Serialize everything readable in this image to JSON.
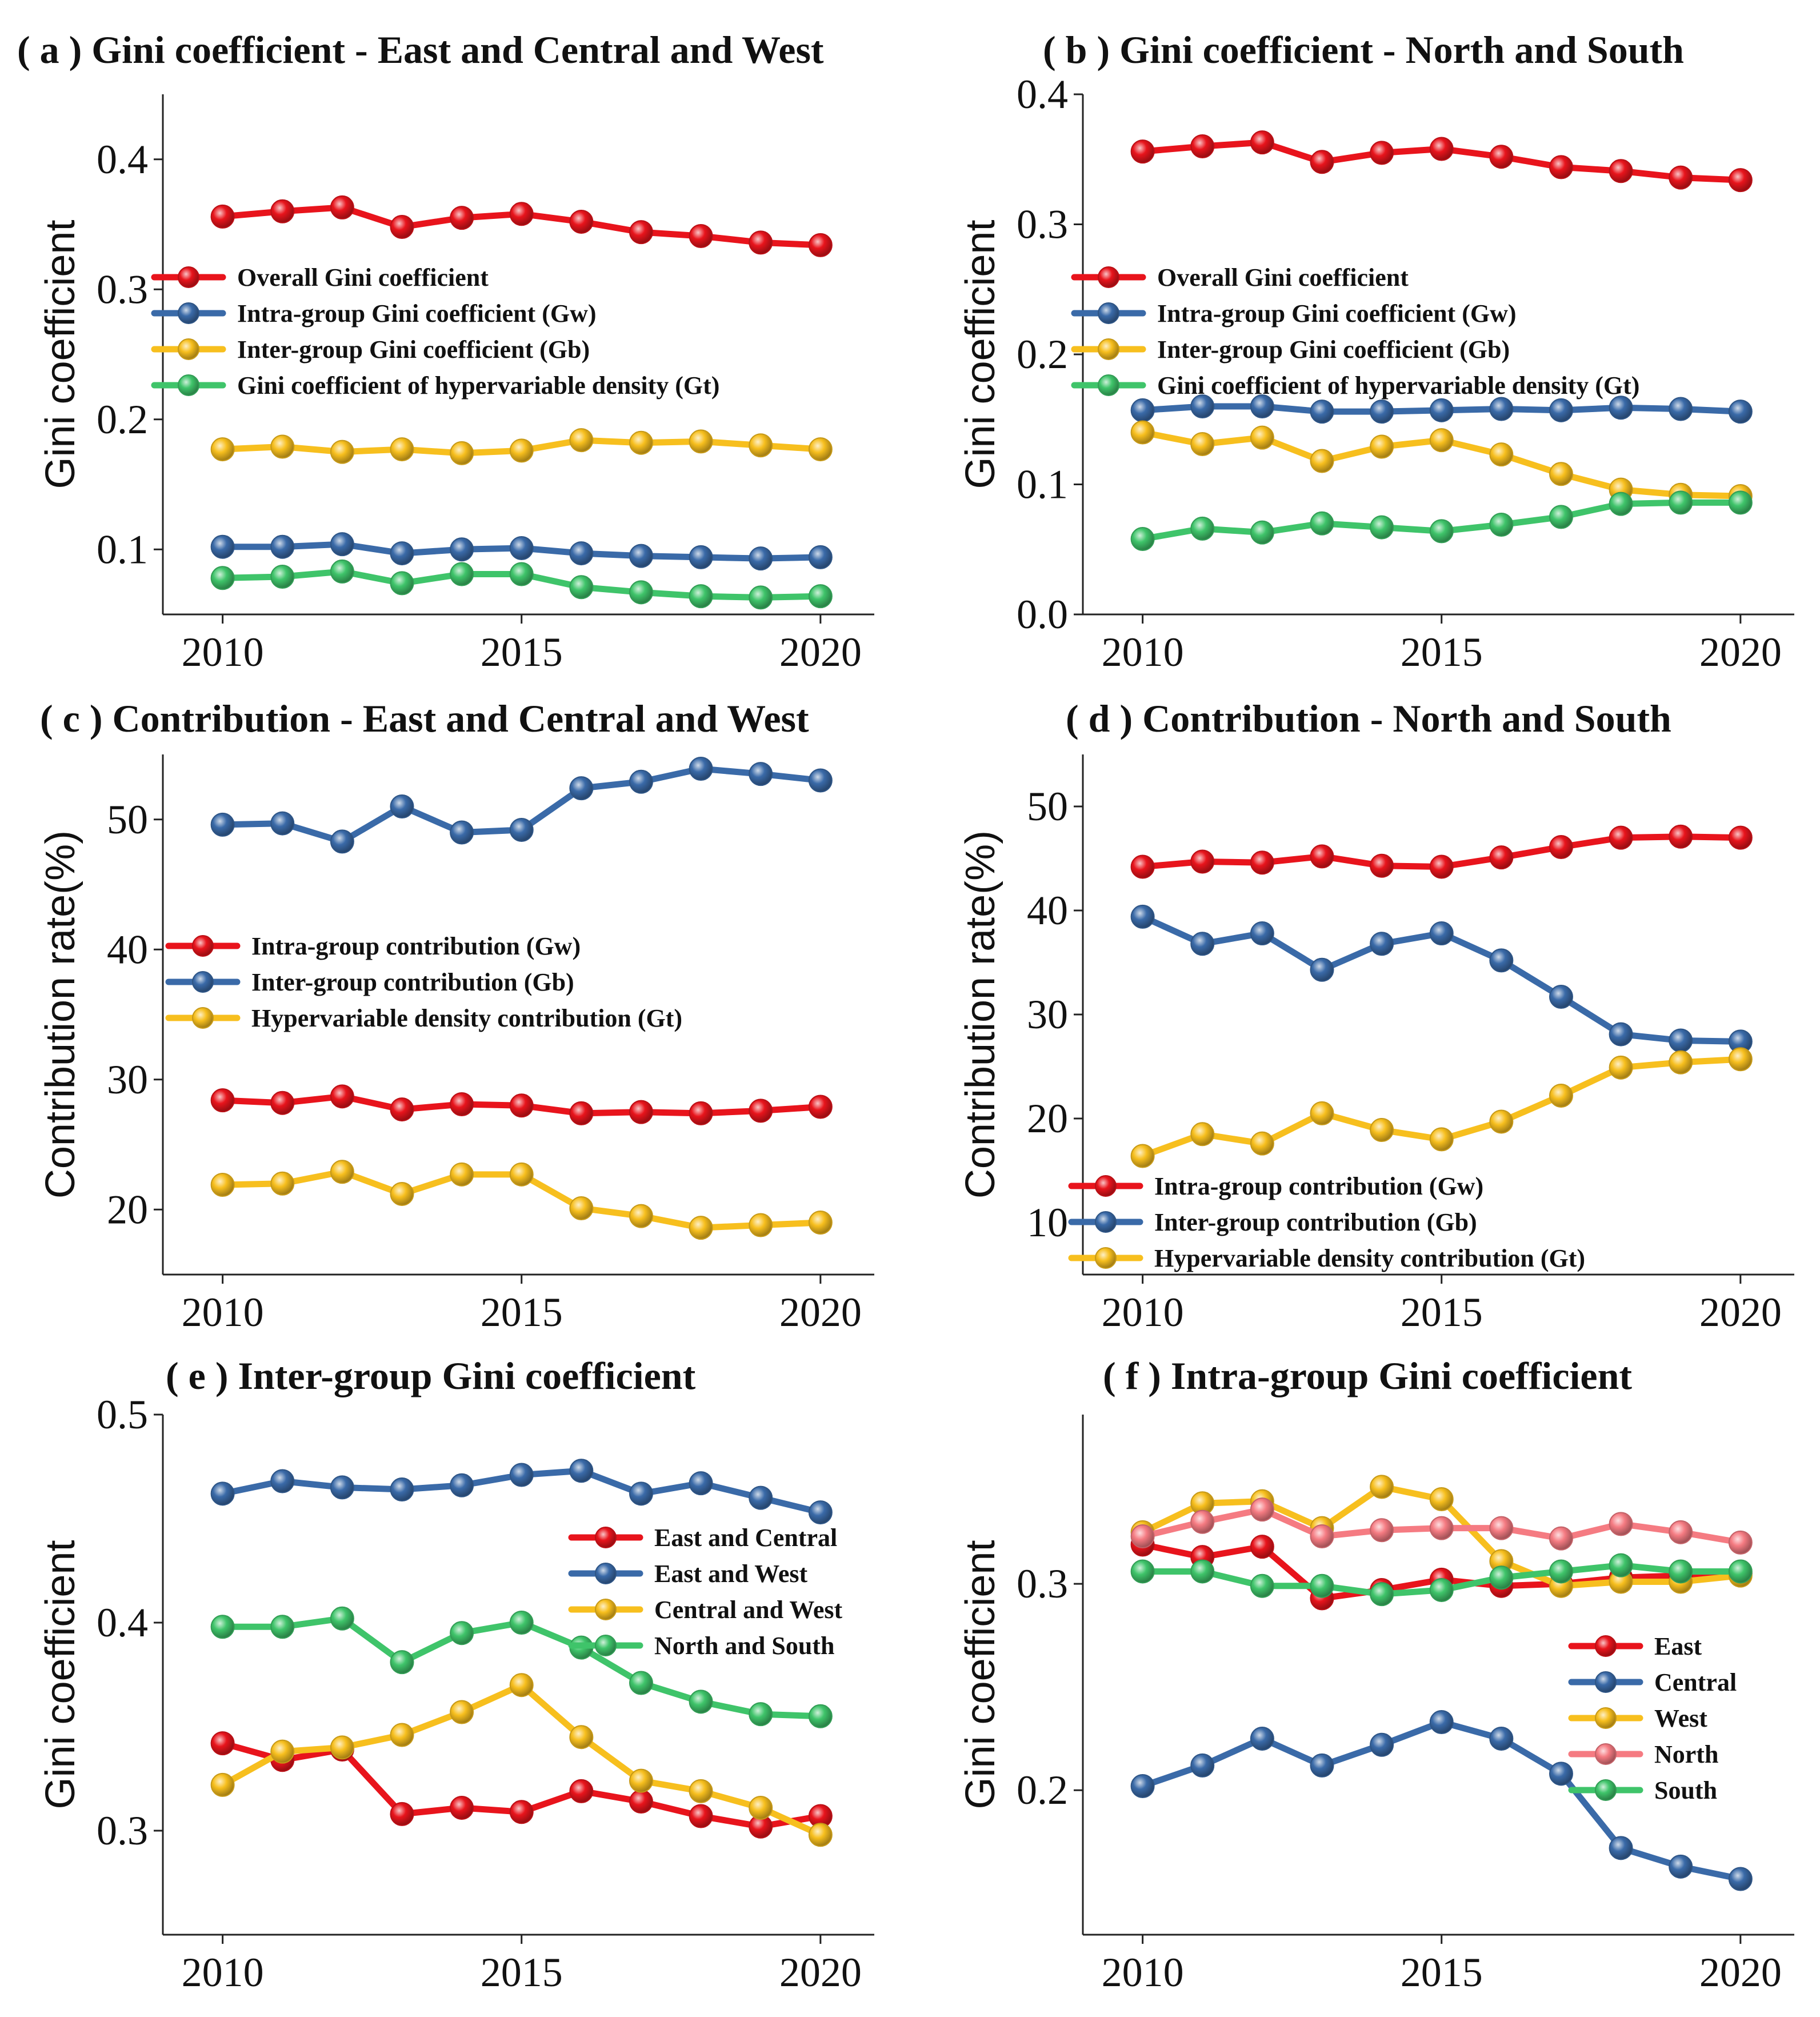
{
  "chart_data": [
    {
      "id": "a",
      "type": "line",
      "title": "( a ) Gini coefficient - East and Central and West",
      "xlabel": "",
      "ylabel": "Gini coefficient",
      "x": [
        2010,
        2011,
        2012,
        2013,
        2014,
        2015,
        2016,
        2017,
        2018,
        2019,
        2020
      ],
      "xticks": [
        2010,
        2015,
        2020
      ],
      "xlim": [
        2009,
        2020.9
      ],
      "ylim": [
        0.05,
        0.45
      ],
      "yticks": [
        0.1,
        0.2,
        0.3,
        0.4
      ],
      "ytick_labels": [
        "0.1",
        "0.2",
        "0.3",
        "0.4"
      ],
      "legend_position": "upper-left",
      "series": [
        {
          "name": "Overall Gini coefficient",
          "color": "#e8141c",
          "values": [
            0.356,
            0.36,
            0.363,
            0.348,
            0.355,
            0.358,
            0.352,
            0.344,
            0.341,
            0.336,
            0.334
          ]
        },
        {
          "name": "Intra-group Gini coefficient (Gw)",
          "color": "#3a6aa8",
          "values": [
            0.102,
            0.102,
            0.104,
            0.097,
            0.1,
            0.101,
            0.097,
            0.095,
            0.094,
            0.093,
            0.094
          ]
        },
        {
          "name": "Inter-group Gini coefficient (Gb)",
          "color": "#f7bf1e",
          "values": [
            0.177,
            0.179,
            0.175,
            0.177,
            0.174,
            0.176,
            0.184,
            0.182,
            0.183,
            0.18,
            0.177
          ]
        },
        {
          "name": "Gini coefficient of hypervariable density (Gt)",
          "color": "#3fc46a",
          "values": [
            0.078,
            0.079,
            0.083,
            0.074,
            0.081,
            0.081,
            0.071,
            0.067,
            0.064,
            0.063,
            0.064
          ]
        }
      ]
    },
    {
      "id": "b",
      "type": "line",
      "title": "( b ) Gini coefficient -  North and South",
      "xlabel": "",
      "ylabel": "Gini coefficient",
      "x": [
        2010,
        2011,
        2012,
        2013,
        2014,
        2015,
        2016,
        2017,
        2018,
        2019,
        2020
      ],
      "xticks": [
        2010,
        2015,
        2020
      ],
      "xlim": [
        2009,
        2020.9
      ],
      "ylim": [
        0.0,
        0.4
      ],
      "yticks": [
        0.0,
        0.1,
        0.2,
        0.3,
        0.4
      ],
      "ytick_labels": [
        "0.0",
        "0.1",
        "0.2",
        "0.3",
        "0.4"
      ],
      "legend_position": "upper-left",
      "series": [
        {
          "name": "Overall Gini coefficient",
          "color": "#e8141c",
          "values": [
            0.356,
            0.36,
            0.363,
            0.348,
            0.355,
            0.358,
            0.352,
            0.344,
            0.341,
            0.336,
            0.334
          ]
        },
        {
          "name": "Intra-group Gini coefficient (Gw)",
          "color": "#3a6aa8",
          "values": [
            0.157,
            0.16,
            0.16,
            0.156,
            0.156,
            0.157,
            0.158,
            0.157,
            0.159,
            0.158,
            0.156
          ]
        },
        {
          "name": "Inter-group Gini coefficient (Gb)",
          "color": "#f7bf1e",
          "values": [
            0.14,
            0.131,
            0.136,
            0.118,
            0.129,
            0.134,
            0.123,
            0.108,
            0.096,
            0.092,
            0.091
          ]
        },
        {
          "name": "Gini coefficient of hypervariable density (Gt)",
          "color": "#3fc46a",
          "values": [
            0.058,
            0.066,
            0.063,
            0.07,
            0.067,
            0.064,
            0.069,
            0.075,
            0.085,
            0.086,
            0.086
          ]
        }
      ]
    },
    {
      "id": "c",
      "type": "line",
      "title": "( c ) Contribution - East and Central and West",
      "xlabel": "",
      "ylabel": "Contribution rate(%)",
      "x": [
        2010,
        2011,
        2012,
        2013,
        2014,
        2015,
        2016,
        2017,
        2018,
        2019,
        2020
      ],
      "xticks": [
        2010,
        2015,
        2020
      ],
      "xlim": [
        2009,
        2020.9
      ],
      "ylim": [
        15,
        55
      ],
      "yticks": [
        20,
        30,
        40,
        50
      ],
      "ytick_labels": [
        "20",
        "30",
        "40",
        "50"
      ],
      "legend_position": "middle-left",
      "series": [
        {
          "name": "Intra-group contribution (Gw)",
          "color": "#e8141c",
          "values": [
            28.4,
            28.2,
            28.7,
            27.7,
            28.1,
            28.0,
            27.4,
            27.5,
            27.4,
            27.6,
            27.9
          ]
        },
        {
          "name": "Inter-group contribution (Gb)",
          "color": "#3a6aa8",
          "values": [
            49.6,
            49.7,
            48.3,
            51.0,
            49.0,
            49.2,
            52.4,
            52.9,
            53.9,
            53.5,
            53.0
          ]
        },
        {
          "name": "Hypervariable density contribution (Gt)",
          "color": "#f7bf1e",
          "values": [
            21.9,
            22.0,
            22.9,
            21.2,
            22.7,
            22.7,
            20.1,
            19.5,
            18.6,
            18.8,
            19.0
          ]
        }
      ]
    },
    {
      "id": "d",
      "type": "line",
      "title": "( d ) Contribution -  North and South",
      "xlabel": "",
      "ylabel": "Contribution rate(%)",
      "x": [
        2010,
        2011,
        2012,
        2013,
        2014,
        2015,
        2016,
        2017,
        2018,
        2019,
        2020
      ],
      "xticks": [
        2010,
        2015,
        2020
      ],
      "xlim": [
        2009,
        2020.9
      ],
      "ylim": [
        5,
        55
      ],
      "yticks": [
        10,
        20,
        30,
        40,
        50
      ],
      "ytick_labels": [
        "10",
        "20",
        "30",
        "40",
        "50"
      ],
      "legend_position": "lower-left",
      "series": [
        {
          "name": "Intra-group contribution (Gw)",
          "color": "#e8141c",
          "values": [
            44.2,
            44.7,
            44.6,
            45.2,
            44.3,
            44.2,
            45.1,
            46.1,
            47.0,
            47.1,
            47.0
          ]
        },
        {
          "name": "Inter-group contribution (Gb)",
          "color": "#3a6aa8",
          "values": [
            39.4,
            36.8,
            37.8,
            34.3,
            36.8,
            37.8,
            35.2,
            31.7,
            28.1,
            27.5,
            27.4
          ]
        },
        {
          "name": "Hypervariable density contribution (Gt)",
          "color": "#f7bf1e",
          "values": [
            16.4,
            18.5,
            17.6,
            20.5,
            18.9,
            18.0,
            19.7,
            22.2,
            24.9,
            25.4,
            25.7
          ]
        }
      ]
    },
    {
      "id": "e",
      "type": "line",
      "title": "( e ) Inter-group Gini coefficient",
      "xlabel": "",
      "ylabel": "Gini coefficient",
      "x": [
        2010,
        2011,
        2012,
        2013,
        2014,
        2015,
        2016,
        2017,
        2018,
        2019,
        2020
      ],
      "xticks": [
        2010,
        2015,
        2020
      ],
      "xlim": [
        2009,
        2020.9
      ],
      "ylim": [
        0.25,
        0.5
      ],
      "yticks": [
        0.3,
        0.4,
        0.5
      ],
      "ytick_labels": [
        "0.3",
        "0.4",
        "0.5"
      ],
      "legend_position": "right",
      "series": [
        {
          "name": "East and Central",
          "color": "#e8141c",
          "values": [
            0.342,
            0.334,
            0.339,
            0.308,
            0.311,
            0.309,
            0.319,
            0.314,
            0.307,
            0.302,
            0.307
          ]
        },
        {
          "name": "East and West",
          "color": "#3a6aa8",
          "values": [
            0.462,
            0.468,
            0.465,
            0.464,
            0.466,
            0.471,
            0.473,
            0.462,
            0.467,
            0.46,
            0.453
          ]
        },
        {
          "name": "Central and West",
          "color": "#f7bf1e",
          "values": [
            0.322,
            0.338,
            0.34,
            0.346,
            0.357,
            0.37,
            0.345,
            0.324,
            0.319,
            0.311,
            0.298
          ]
        },
        {
          "name": "North and South",
          "color": "#3fc46a",
          "values": [
            0.398,
            0.398,
            0.402,
            0.381,
            0.395,
            0.4,
            0.388,
            0.371,
            0.362,
            0.356,
            0.355
          ]
        }
      ]
    },
    {
      "id": "f",
      "type": "line",
      "title": "( f ) Intra-group Gini coefficient",
      "xlabel": "",
      "ylabel": "Gini coefficient",
      "x": [
        2010,
        2011,
        2012,
        2013,
        2014,
        2015,
        2016,
        2017,
        2018,
        2019,
        2020
      ],
      "xticks": [
        2010,
        2015,
        2020
      ],
      "xlim": [
        2009,
        2020.9
      ],
      "ylim": [
        0.13,
        0.382
      ],
      "yticks": [
        0.2,
        0.3
      ],
      "ytick_labels": [
        "0.2",
        "0.3"
      ],
      "legend_position": "lower-right",
      "series": [
        {
          "name": "East",
          "color": "#e8141c",
          "values": [
            0.319,
            0.313,
            0.318,
            0.293,
            0.297,
            0.302,
            0.299,
            0.3,
            0.303,
            0.304,
            0.305
          ]
        },
        {
          "name": "Central",
          "color": "#3a6aa8",
          "values": [
            0.202,
            0.212,
            0.225,
            0.212,
            0.222,
            0.233,
            0.225,
            0.208,
            0.172,
            0.163,
            0.157
          ]
        },
        {
          "name": "West",
          "color": "#f7bf1e",
          "values": [
            0.325,
            0.339,
            0.34,
            0.327,
            0.347,
            0.341,
            0.311,
            0.299,
            0.301,
            0.301,
            0.304
          ]
        },
        {
          "name": "North",
          "color": "#f57b82",
          "values": [
            0.323,
            0.33,
            0.336,
            0.323,
            0.326,
            0.327,
            0.327,
            0.322,
            0.329,
            0.325,
            0.32
          ]
        },
        {
          "name": "South",
          "color": "#3fc46a",
          "values": [
            0.306,
            0.306,
            0.299,
            0.299,
            0.295,
            0.297,
            0.303,
            0.306,
            0.309,
            0.306,
            0.306
          ]
        }
      ]
    }
  ]
}
